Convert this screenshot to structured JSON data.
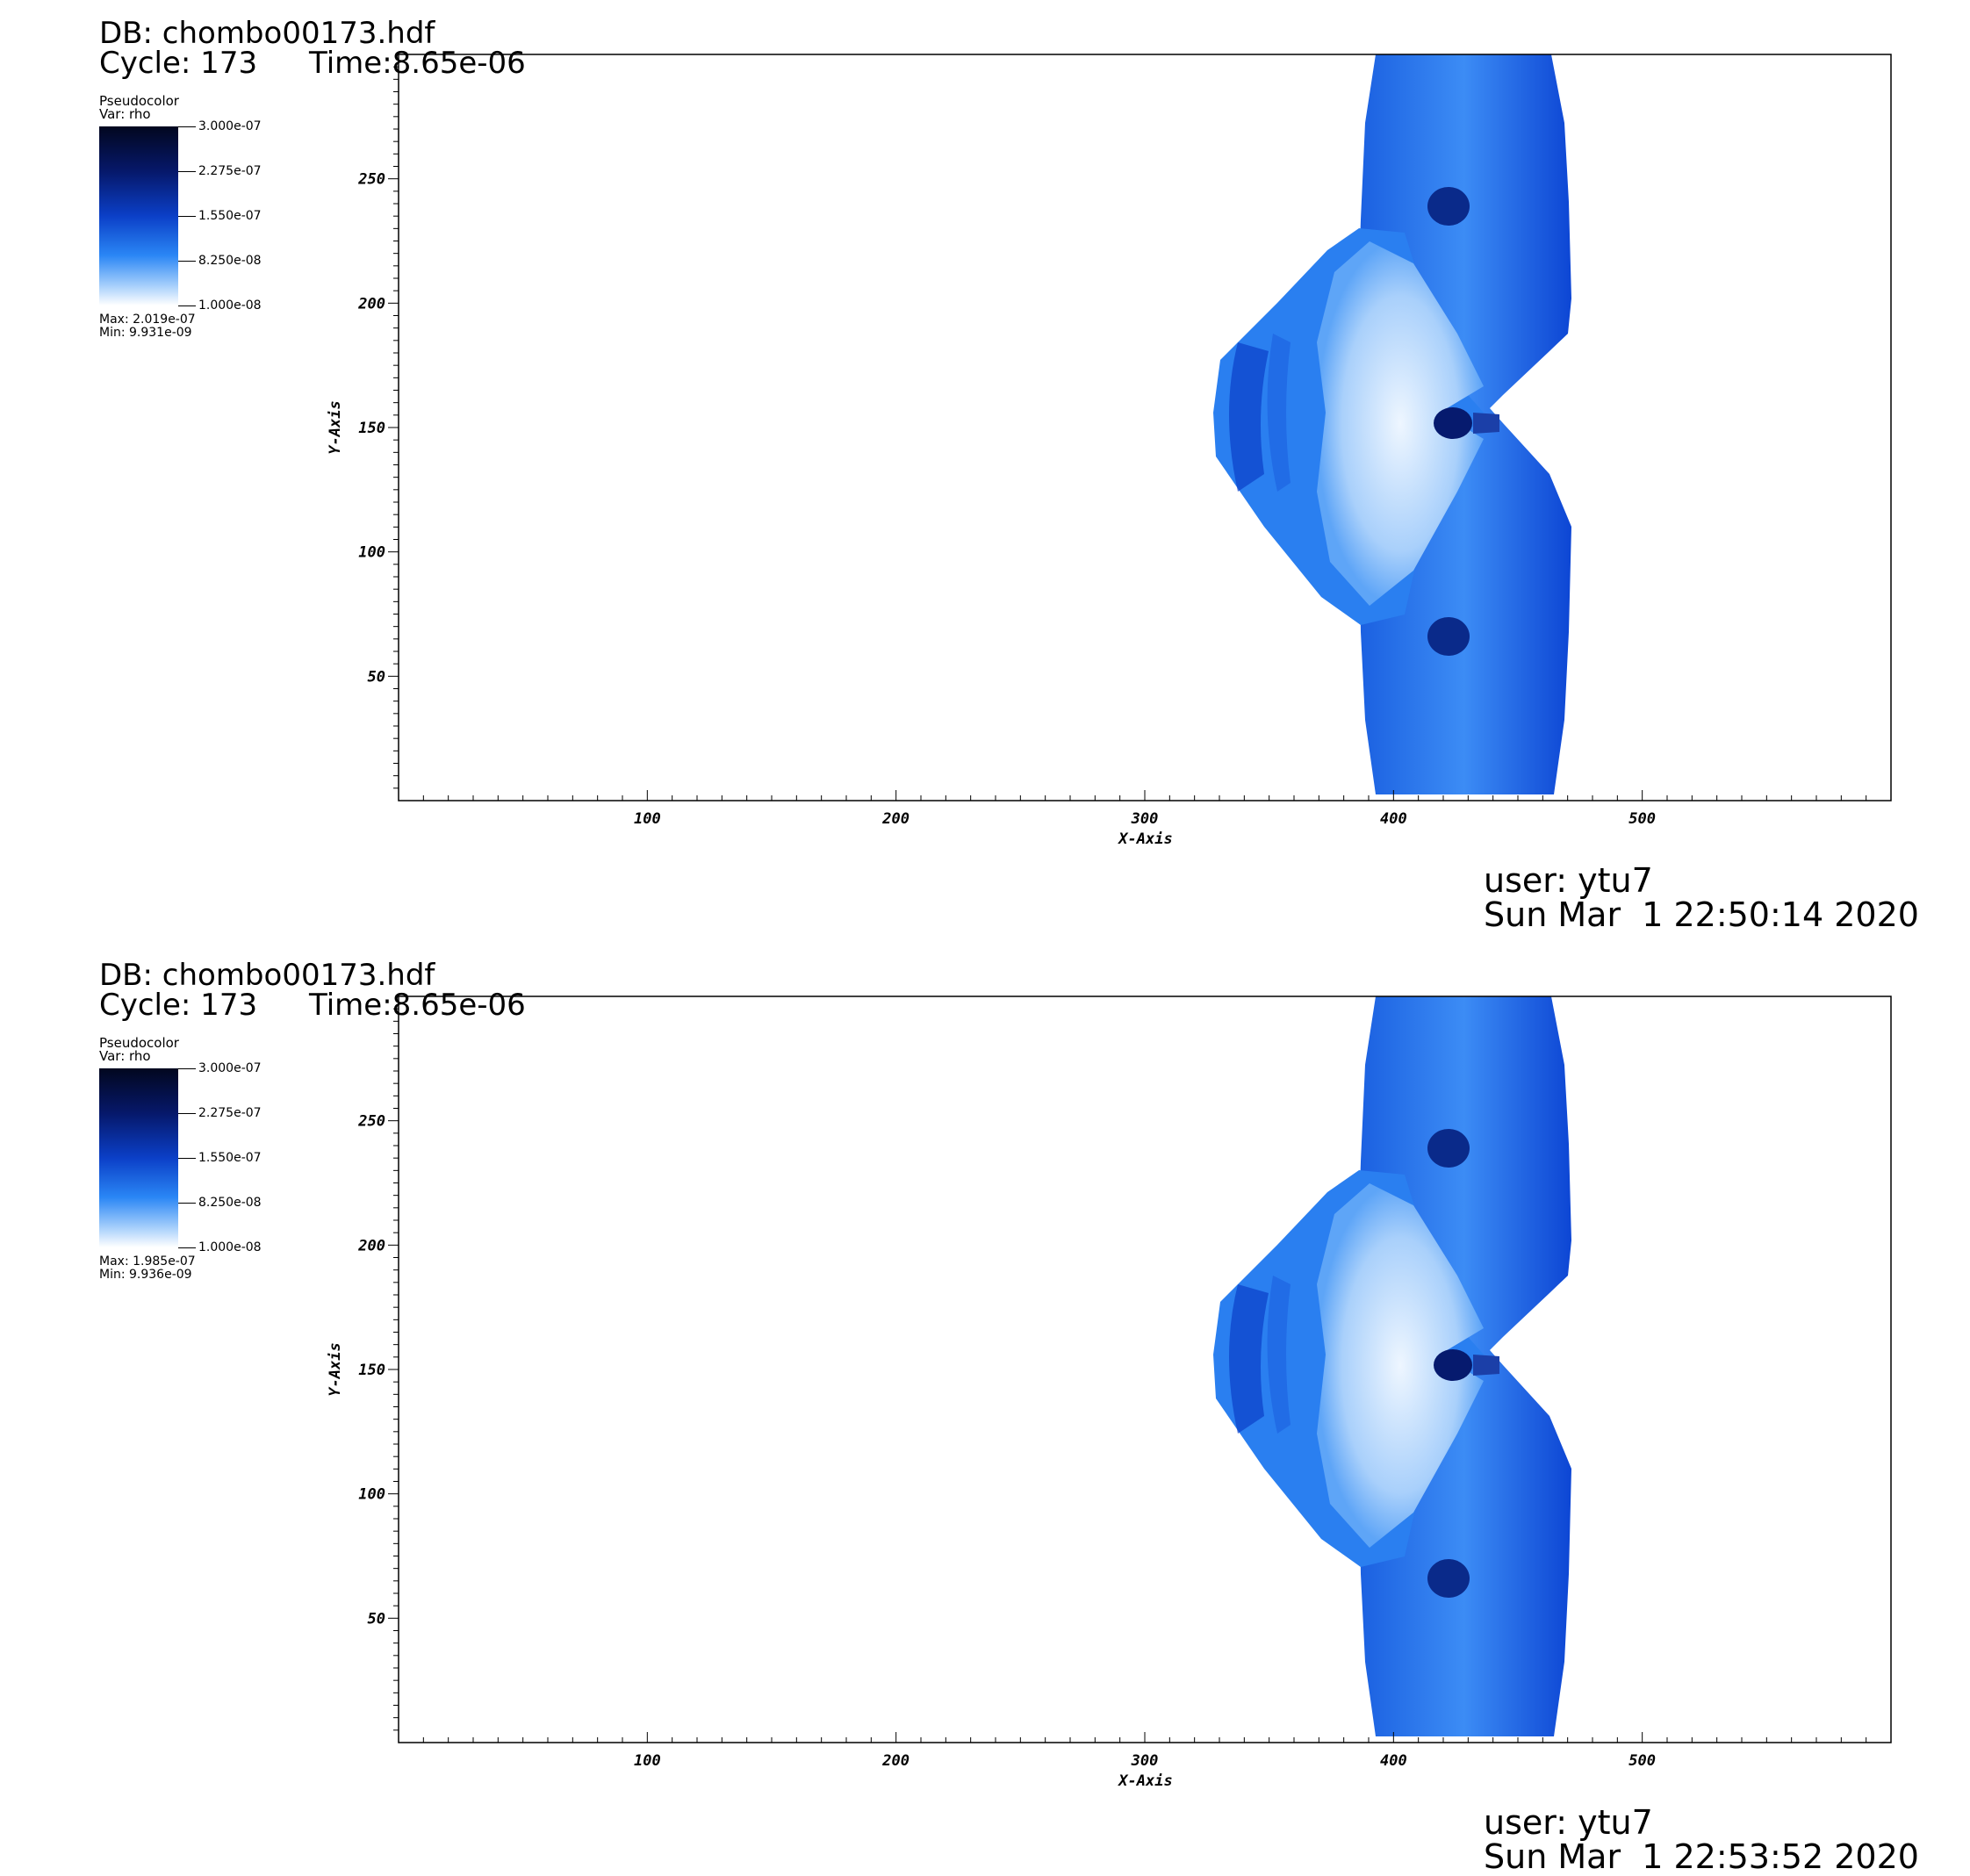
{
  "plots": [
    {
      "db_label": "DB: chombo00173.hdf",
      "cycle_label": "Cycle: 173",
      "time_label": "Time:8.65e-06",
      "legend": {
        "plot_type": "Pseudocolor",
        "var": "Var: rho",
        "ticks": [
          "3.000e-07",
          "2.275e-07",
          "1.550e-07",
          "8.250e-08",
          "1.000e-08"
        ],
        "max": "Max: 2.019e-07",
        "min": "Min: 9.931e-09"
      },
      "user": "user: ytu7",
      "date": "Sun Mar  1 22:50:14 2020"
    },
    {
      "db_label": "DB: chombo00173.hdf",
      "cycle_label": "Cycle: 173",
      "time_label": "Time:8.65e-06",
      "legend": {
        "plot_type": "Pseudocolor",
        "var": "Var: rho",
        "ticks": [
          "3.000e-07",
          "2.275e-07",
          "1.550e-07",
          "8.250e-08",
          "1.000e-08"
        ],
        "max": "Max: 1.985e-07",
        "min": "Min: 9.936e-09"
      },
      "user": "user: ytu7",
      "date": "Sun Mar  1 22:53:52 2020"
    }
  ],
  "chart_data": [
    {
      "type": "heatmap",
      "variable": "rho",
      "colormap": [
        "#ffffff",
        "#2a86f5",
        "#0b3fc7",
        "#06186a",
        "#02071f"
      ],
      "colorbar_range": [
        1e-08,
        3e-07
      ],
      "xlabel": "X-Axis",
      "ylabel": "Y-Axis",
      "xlim": [
        0,
        600
      ],
      "ylim": [
        0,
        300
      ],
      "xticks": [
        100,
        200,
        300,
        400,
        500
      ],
      "yticks": [
        50,
        100,
        150,
        200,
        250
      ],
      "data_max": 2.019e-07,
      "data_min": 9.931e-09
    },
    {
      "type": "heatmap",
      "variable": "rho",
      "colormap": [
        "#ffffff",
        "#2a86f5",
        "#0b3fc7",
        "#06186a",
        "#02071f"
      ],
      "colorbar_range": [
        1e-08,
        3e-07
      ],
      "xlabel": "X-Axis",
      "ylabel": "Y-Axis",
      "xlim": [
        0,
        600
      ],
      "ylim": [
        0,
        300
      ],
      "xticks": [
        100,
        200,
        300,
        400,
        500
      ],
      "yticks": [
        50,
        100,
        150,
        200,
        250
      ],
      "data_max": 1.985e-07,
      "data_min": 9.936e-09
    }
  ]
}
